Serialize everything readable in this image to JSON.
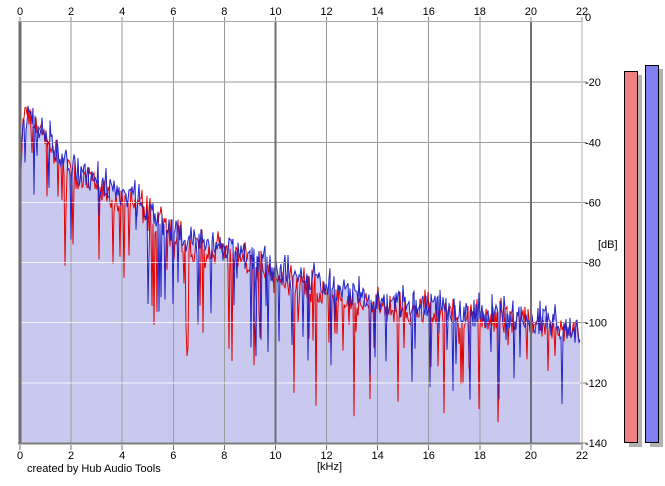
{
  "window": {
    "background": "#ffffff"
  },
  "labels": {
    "credit": "created by Hub Audio Tools",
    "khz_axis": "[kHz]",
    "db_axis": "[dB]"
  },
  "colors": {
    "grid_minor": "#9a9a9a",
    "grid_major": "#6f6f6f",
    "grid_overlay_on_fill": "#ffffff",
    "axis_dark": "#6f6f6f",
    "axis_light": "#ababab",
    "axis_bottom": "#7d7d7d",
    "tick": "#8a8a8a",
    "text": "#000000",
    "meter_shadow": "#b2b2b2",
    "meter_border": "#000000"
  },
  "chart_data": {
    "type": "area",
    "title": "",
    "xlabel": "[kHz]",
    "ylabel": "[dB]",
    "xlim": [
      0,
      22
    ],
    "ylim": [
      -140,
      0
    ],
    "x_ticks": [
      0,
      2,
      4,
      6,
      8,
      10,
      12,
      14,
      16,
      18,
      20,
      22
    ],
    "y_ticks": [
      0,
      -20,
      -40,
      -60,
      -80,
      -100,
      -120,
      -140
    ],
    "grid": true,
    "legend": "none",
    "series": [
      {
        "name": "spectrum-red",
        "type": "line",
        "color": "#e60000",
        "envelope_khz": [
          0,
          0.12,
          0.3,
          0.6,
          1,
          1.5,
          2,
          2.5,
          3,
          3.5,
          4,
          4.4,
          5,
          5.5,
          6,
          6.5,
          7,
          7.5,
          8,
          8.5,
          9,
          9.5,
          10,
          11,
          12,
          13,
          14,
          15,
          16,
          17,
          18,
          19,
          20,
          21,
          22
        ],
        "envelope_db": [
          -60,
          -32,
          -30,
          -34,
          -40,
          -45,
          -50,
          -53,
          -55,
          -58,
          -61,
          -59,
          -65,
          -68,
          -72,
          -74,
          -76,
          -76,
          -77,
          -79,
          -81,
          -83,
          -85,
          -88,
          -90,
          -93,
          -95,
          -96,
          -96,
          -97,
          -98,
          -99,
          -100,
          -102,
          -104
        ],
        "texture": {
          "jitter_db": 4.5,
          "peak_prob": 0.18,
          "peak_db": 6,
          "notch_prob": 0.12,
          "notch_db_min": 6,
          "notch_db_max": 36,
          "seed": 1337
        }
      },
      {
        "name": "spectrum-blue",
        "type": "area",
        "color": "#2323c8",
        "fill": "#c9c9f0",
        "envelope_khz": [
          0,
          0.12,
          0.3,
          0.6,
          1,
          1.5,
          2,
          2.5,
          3,
          3.5,
          4,
          4.4,
          5,
          5.5,
          6,
          6.5,
          7,
          7.5,
          8,
          8.5,
          9,
          9.5,
          10,
          11,
          12,
          13,
          14,
          15,
          16,
          17,
          18,
          19,
          20,
          21,
          22
        ],
        "envelope_db": [
          -58,
          -31,
          -29,
          -33,
          -38,
          -43,
          -48,
          -51,
          -53,
          -56,
          -59,
          -57,
          -63,
          -66,
          -70,
          -72,
          -74,
          -74,
          -75,
          -77,
          -79,
          -81,
          -83,
          -86,
          -88,
          -91,
          -93,
          -94,
          -95,
          -96,
          -97,
          -98,
          -99,
          -101,
          -103
        ],
        "texture": {
          "jitter_db": 4.5,
          "peak_prob": 0.18,
          "peak_db": 6,
          "notch_prob": 0.1,
          "notch_db_min": 6,
          "notch_db_max": 32,
          "seed": 42
        }
      }
    ],
    "meters": [
      {
        "name": "peak-meter-red",
        "peak_db": -16.3,
        "color": "#f28080"
      },
      {
        "name": "peak-meter-blue",
        "peak_db": -14.3,
        "color": "#8080f0"
      }
    ]
  }
}
